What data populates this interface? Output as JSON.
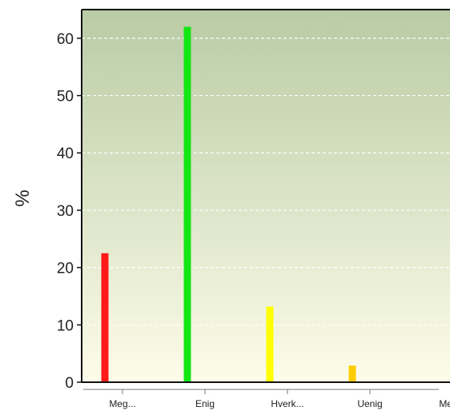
{
  "chart_data": {
    "type": "bar",
    "categories": [
      "Meg...",
      "Enig",
      "Hverk...",
      "Uenig",
      "Meg..."
    ],
    "values": [
      22.5,
      62,
      13.2,
      2.9,
      0
    ],
    "bar_colors": [
      "#ff1a1a",
      "#14e614",
      "#ffff00",
      "#ffcc00",
      "#ff8800"
    ],
    "ylabel": "%",
    "xlabel": "",
    "ylim": [
      0,
      65
    ],
    "yticks": [
      0,
      10,
      20,
      30,
      40,
      50,
      60
    ],
    "grid": true,
    "background_gradient": [
      "#b9cba5",
      "#fdfce9"
    ]
  }
}
